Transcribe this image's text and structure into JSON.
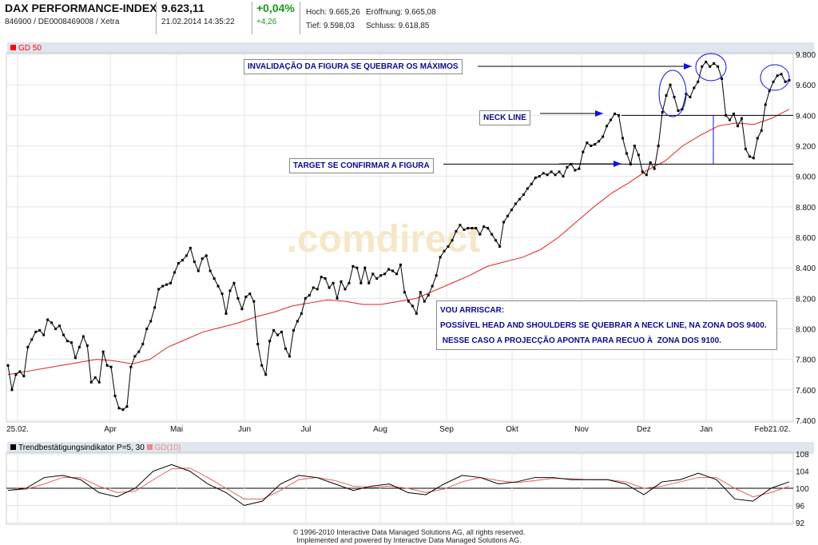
{
  "header": {
    "title": "DAX PERFORMANCE-INDEX",
    "ids": "846900 / DE0008469008 / Xetra",
    "price": "9.623,11",
    "datetime": "21.02.2014 14:35:22",
    "change_pct": "+0,04%",
    "change_abs": "+4,26",
    "hoch": "Hoch: 9.665,26",
    "eroeffnung": "Eröffnung: 9.665,08",
    "tief": "Tief: 9.598,03",
    "schluss": "Schluss: 9.618,85"
  },
  "legend": {
    "ma": "GD 50",
    "indicator": "Trendbestätigungsindikator P=5, 30",
    "indicator_ma": "GD(10)"
  },
  "colors": {
    "price": "#000000",
    "ma": "#e02020",
    "annotation": "#0a0a90",
    "arrow": "#1010e0"
  },
  "annotations": {
    "invalidation": "INVALIDAÇÃO DA FIGURA SE QUEBRAR OS MÁXIMOS",
    "neck": "NECK LINE",
    "target": "TARGET SE CONFIRMAR A FIGURA",
    "note1": "VOU ARRISCAR:",
    "note2": "POSSÍVEL HEAD AND SHOULDERS SE QUEBRAR A NECK LINE, NA ZONA DOS 9400.",
    "note3": " NESSE CASO A PROJECÇÃO APONTA PARA RECUO À  ZONA DOS 9100."
  },
  "footer": {
    "line1": "© 1996-2010 Interactive Data Managed Solutions AG, all rights reserved.",
    "line2": "Implemented and powered by Interactive Data Managed Solutions AG."
  },
  "chart_data": [
    {
      "type": "line",
      "title": "DAX PERFORMANCE-INDEX",
      "ylim": [
        7400,
        9800
      ],
      "yticks": [
        "9.800",
        "9.600",
        "9.400",
        "9.200",
        "9.000",
        "8.800",
        "8.600",
        "8.400",
        "8.200",
        "8.000",
        "7.800",
        "7.600",
        "7.400"
      ],
      "xticks": [
        "25.02.",
        "Apr",
        "Mai",
        "Jun",
        "Jul",
        "Aug",
        "Sep",
        "Okt",
        "Nov",
        "Dez",
        "Jan",
        "Feb21.02."
      ],
      "series": [
        {
          "name": "DAX",
          "values": [
            7760,
            7600,
            7700,
            7720,
            7690,
            7880,
            7930,
            7980,
            7990,
            7960,
            8060,
            8040,
            8000,
            8020,
            7960,
            7920,
            7910,
            7810,
            7880,
            7950,
            7890,
            7650,
            7680,
            7650,
            7850,
            7760,
            7750,
            7560,
            7480,
            7470,
            7490,
            7750,
            7820,
            7850,
            7900,
            8000,
            8050,
            8140,
            8260,
            8280,
            8290,
            8300,
            8370,
            8430,
            8450,
            8480,
            8530,
            8440,
            8380,
            8460,
            8480,
            8380,
            8330,
            8280,
            8230,
            8100,
            8250,
            8300,
            8200,
            8130,
            8210,
            8230,
            8180,
            7900,
            7760,
            7700,
            7920,
            7990,
            7960,
            7980,
            7870,
            7820,
            7990,
            8050,
            8100,
            8200,
            8220,
            8270,
            8260,
            8340,
            8330,
            8270,
            8300,
            8200,
            8310,
            8260,
            8300,
            8410,
            8400,
            8300,
            8400,
            8300,
            8360,
            8330,
            8350,
            8360,
            8390,
            8380,
            8360,
            8420,
            8240,
            8180,
            8150,
            8100,
            8240,
            8180,
            8220,
            8280,
            8350,
            8470,
            8510,
            8540,
            8580,
            8640,
            8680,
            8650,
            8660,
            8660,
            8660,
            8620,
            8670,
            8660,
            8620,
            8580,
            8540,
            8700,
            8740,
            8780,
            8820,
            8850,
            8880,
            8920,
            8950,
            8990,
            9000,
            9020,
            9010,
            9030,
            9010,
            9030,
            9000,
            9060,
            9080,
            9040,
            9050,
            9160,
            9220,
            9200,
            9210,
            9230,
            9260,
            9330,
            9370,
            9410,
            9400,
            9250,
            9150,
            9080,
            9200,
            9140,
            9030,
            9010,
            9090,
            9050,
            9200,
            9420,
            9530,
            9600,
            9520,
            9430,
            9440,
            9540,
            9520,
            9580,
            9620,
            9720,
            9750,
            9720,
            9740,
            9720,
            9640,
            9400,
            9370,
            9410,
            9330,
            9380,
            9180,
            9130,
            9120,
            9250,
            9300,
            9470,
            9560,
            9620,
            9660,
            9670,
            9620,
            9630
          ]
        },
        {
          "name": "GD 50",
          "values": [
            7700,
            7720,
            7740,
            7760,
            7780,
            7800,
            7790,
            7770,
            7800,
            7880,
            7930,
            7980,
            8010,
            8040,
            8080,
            8110,
            8150,
            8170,
            8190,
            8180,
            8160,
            8160,
            8180,
            8200,
            8250,
            8300,
            8350,
            8410,
            8440,
            8470,
            8520,
            8600,
            8700,
            8800,
            8890,
            8960,
            9040,
            9100,
            9200,
            9270,
            9330,
            9350,
            9340,
            9380,
            9440
          ]
        }
      ]
    },
    {
      "type": "line",
      "title": "Trendbestätigungsindikator P=5, 30",
      "ylim": [
        92,
        108
      ],
      "yticks": [
        "108",
        "104",
        "100",
        "96",
        "92"
      ],
      "series": [
        {
          "name": "Indikator",
          "values": [
            99.5,
            100,
            102.5,
            103,
            102,
            99,
            98,
            100,
            104,
            105.5,
            104,
            101,
            99,
            96,
            97,
            101,
            103,
            102.5,
            101,
            99.5,
            100.5,
            101,
            99,
            98.5,
            101,
            103,
            102.5,
            101,
            101.5,
            102.5,
            102.5,
            102,
            102,
            102,
            101,
            98.5,
            101.5,
            102,
            103.5,
            102,
            97.5,
            97,
            100,
            101.5
          ]
        },
        {
          "name": "GD(10)",
          "values": [
            99.5,
            99.8,
            101,
            102.5,
            102.5,
            100.5,
            99,
            99.3,
            102,
            104.5,
            104.7,
            102.5,
            100,
            97.5,
            97.5,
            99.5,
            102,
            102.5,
            101.8,
            100.5,
            100.2,
            100.5,
            100,
            99,
            99.8,
            101.5,
            102.5,
            101.8,
            101.3,
            101.8,
            102.3,
            102.2,
            102,
            102,
            101.5,
            100,
            100.5,
            101.5,
            102.5,
            102.5,
            100,
            98,
            99,
            100.5
          ]
        }
      ]
    }
  ]
}
